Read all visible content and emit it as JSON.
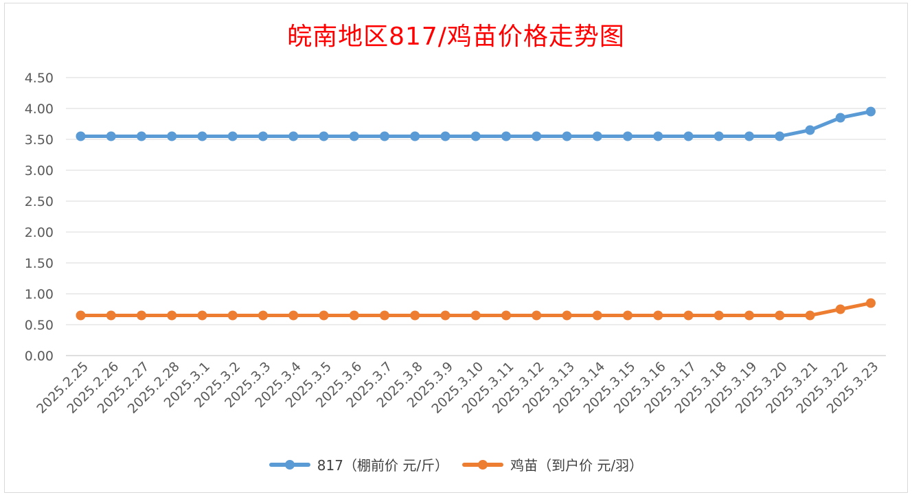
{
  "chart_data": {
    "type": "line",
    "title": "皖南地区817/鸡苗价格走势图",
    "categories": [
      "2025.2.25",
      "2025.2.26",
      "2025.2.27",
      "2025.2.28",
      "2025.3.1",
      "2025.3.2",
      "2025.3.3",
      "2025.3.4",
      "2025.3.5",
      "2025.3.6",
      "2025.3.7",
      "2025.3.8",
      "2025.3.9",
      "2025.3.10",
      "2025.3.11",
      "2025.3.12",
      "2025.3.13",
      "2025.3.14",
      "2025.3.15",
      "2025.3.16",
      "2025.3.17",
      "2025.3.18",
      "2025.3.19",
      "2025.3.20",
      "2025.3.21",
      "2025.3.22",
      "2025.3.23"
    ],
    "series": [
      {
        "name": "817（棚前价 元/斤）",
        "color": "#5b9bd5",
        "values": [
          3.55,
          3.55,
          3.55,
          3.55,
          3.55,
          3.55,
          3.55,
          3.55,
          3.55,
          3.55,
          3.55,
          3.55,
          3.55,
          3.55,
          3.55,
          3.55,
          3.55,
          3.55,
          3.55,
          3.55,
          3.55,
          3.55,
          3.55,
          3.55,
          3.65,
          3.85,
          3.95
        ]
      },
      {
        "name": "鸡苗（到户价 元/羽）",
        "color": "#ed7d31",
        "values": [
          0.65,
          0.65,
          0.65,
          0.65,
          0.65,
          0.65,
          0.65,
          0.65,
          0.65,
          0.65,
          0.65,
          0.65,
          0.65,
          0.65,
          0.65,
          0.65,
          0.65,
          0.65,
          0.65,
          0.65,
          0.65,
          0.65,
          0.65,
          0.65,
          0.65,
          0.75,
          0.85
        ]
      }
    ],
    "ylim": [
      0,
      4.5
    ],
    "yticks": [
      "0.00",
      "0.50",
      "1.00",
      "1.50",
      "2.00",
      "2.50",
      "3.00",
      "3.50",
      "4.00",
      "4.50"
    ],
    "grid": true,
    "legend_position": "bottom",
    "title_color": "#ff0000",
    "xlabel": "",
    "ylabel": ""
  }
}
